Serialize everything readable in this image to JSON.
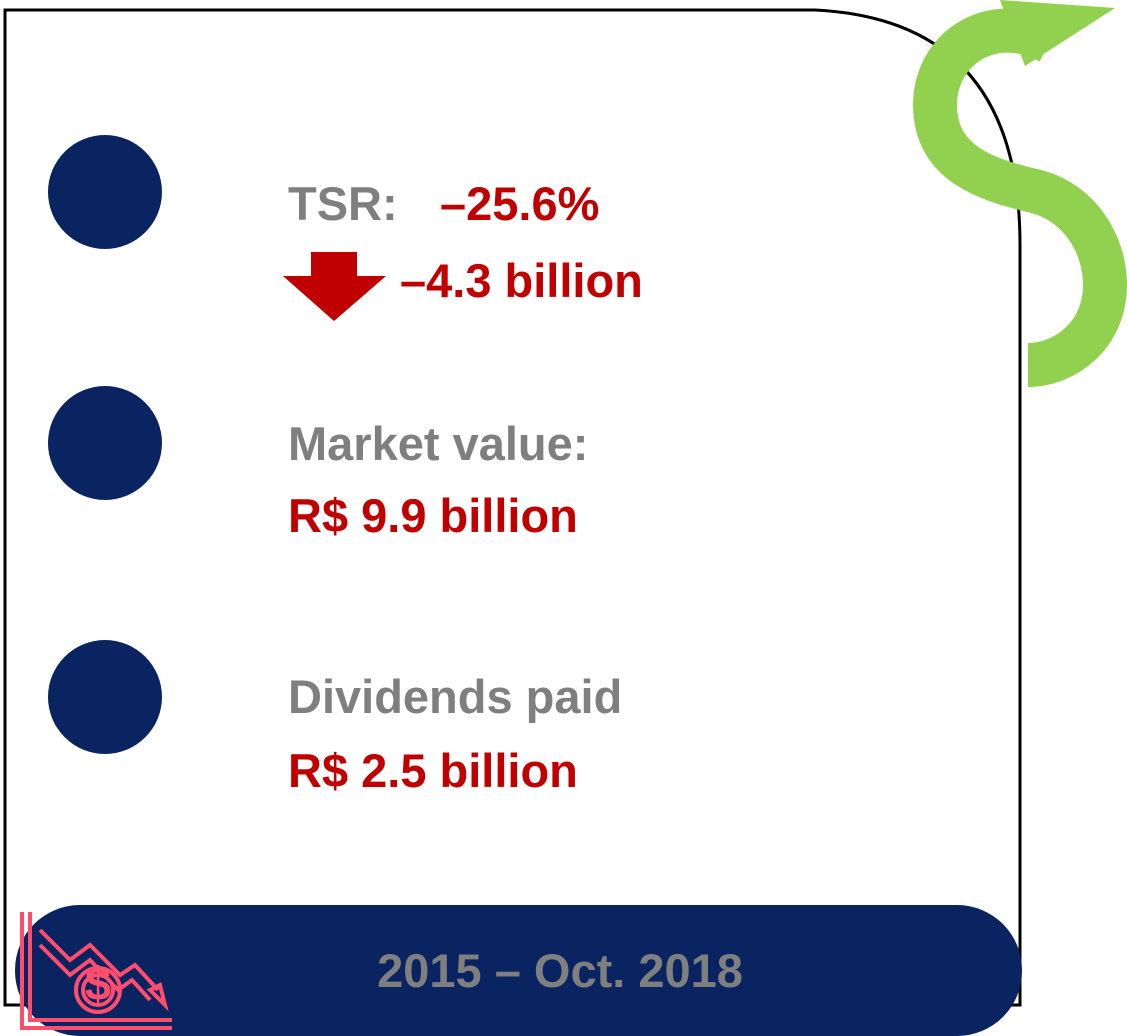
{
  "items": [
    {
      "label": "TSR:",
      "value": "–25.6%",
      "change": "–4.3 billion"
    },
    {
      "label": "Market value:",
      "value": "R$ 9.9 billion"
    },
    {
      "label": "Dividends paid",
      "value": "R$ 2.5 billion"
    }
  ],
  "footer": {
    "period": "2015 – Oct. 2018"
  }
}
